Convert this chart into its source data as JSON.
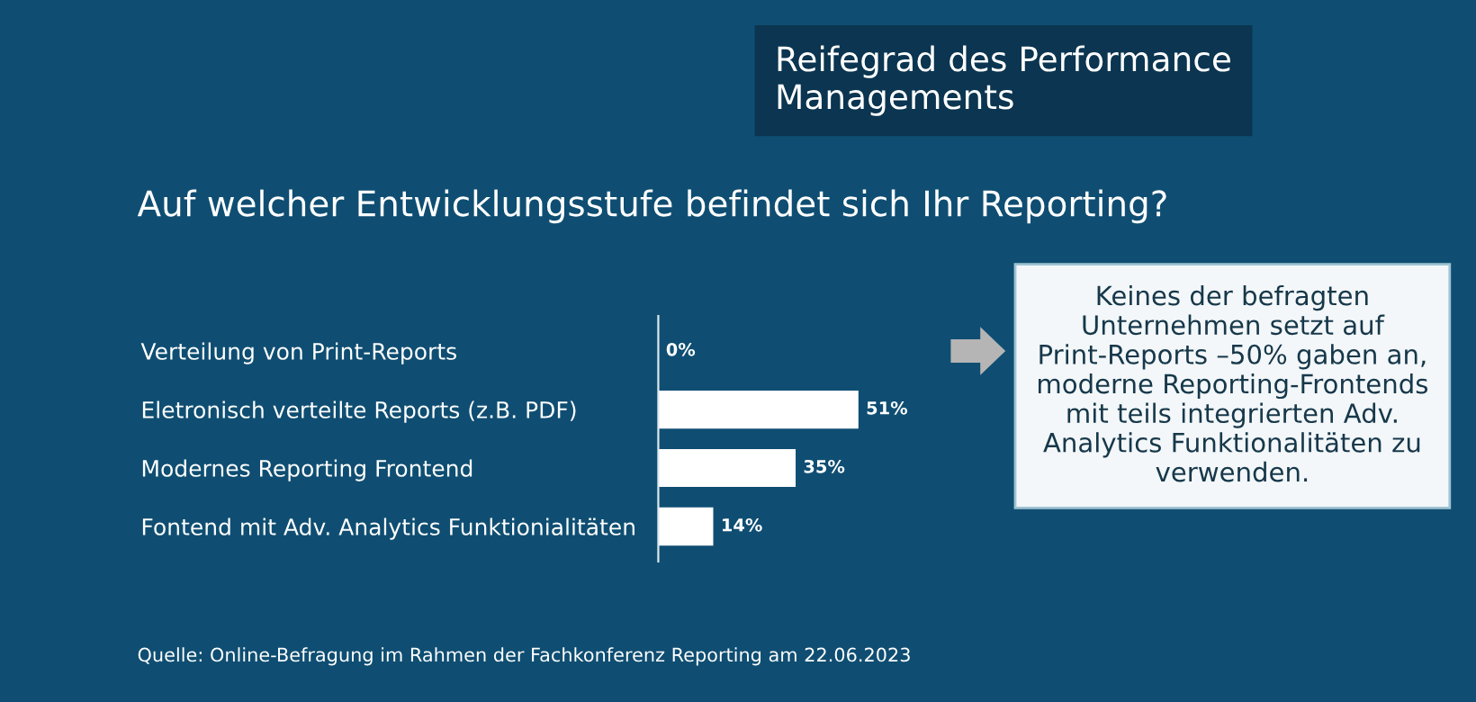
{
  "chart_data": {
    "type": "bar",
    "orientation": "horizontal",
    "relative": false,
    "data_labels": true,
    "title": "Reifegrad des Performance Managements",
    "subtitle": "Auf welcher Entwicklungsstufe befindet sich Ihr Reporting?",
    "categories": [
      "Verteilung von Print-Reports",
      "Eletronisch verteilte Reports (z.B. PDF)",
      "Modernes Reporting Frontend",
      "Fontend mit Adv. Analytics Funktionialitäten"
    ],
    "values": [
      0,
      51,
      35,
      14
    ],
    "value_labels": [
      "0%",
      "51%",
      "35%",
      "14%"
    ],
    "color": "#ffffff",
    "grid": false,
    "annotations": [
      "Keines der befragten Unternehmen setzt auf Print-Reports –50% gaben an, moderne Reporting-Frontends mit teils integrierten Adv. Analytics Funktionalitäten zu verwenden.",
      "Quelle: Online-Befragung im Rahmen der Fachkonferenz Reporting am 22.06.2023"
    ]
  }
}
